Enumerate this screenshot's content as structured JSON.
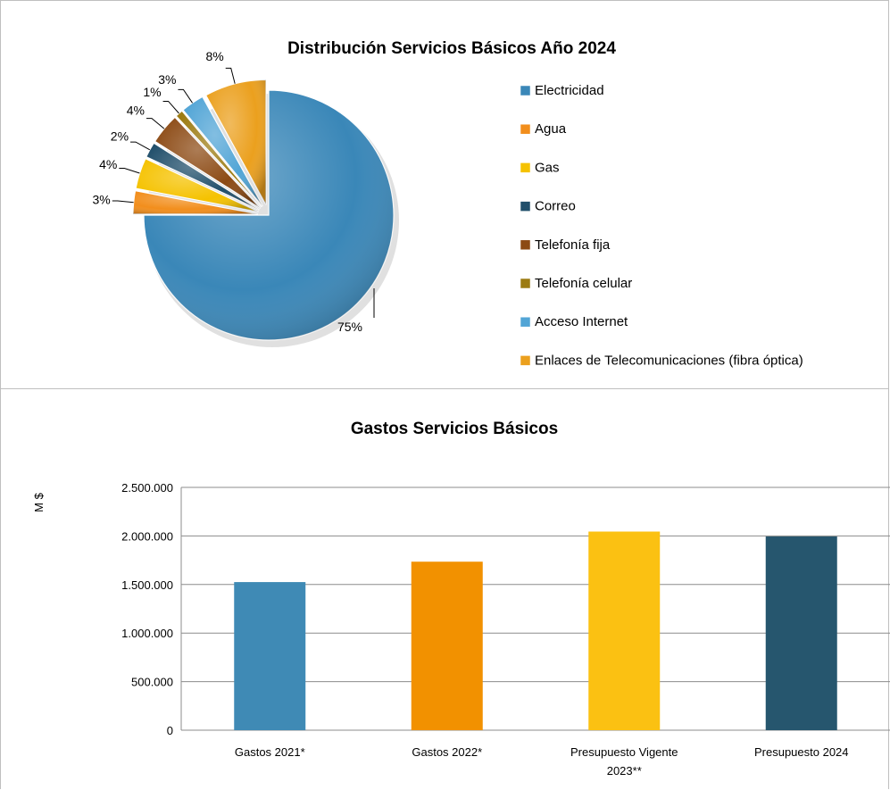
{
  "chart_data": [
    {
      "type": "pie",
      "title": "Distribución Servicios Básicos Año 2024",
      "legend_position": "right",
      "slices": [
        {
          "label": "Electricidad",
          "percent": 75,
          "color": "#3a87b8",
          "exploded": false
        },
        {
          "label": "Agua",
          "percent": 3,
          "color": "#f28e1c",
          "exploded": true
        },
        {
          "label": "Gas",
          "percent": 4,
          "color": "#f5c200",
          "exploded": true
        },
        {
          "label": "Correo",
          "percent": 2,
          "color": "#214f6b",
          "exploded": true
        },
        {
          "label": "Telefonía fija",
          "percent": 4,
          "color": "#8c4a14",
          "exploded": true
        },
        {
          "label": "Telefonía celular",
          "percent": 1,
          "color": "#9c7b12",
          "exploded": true
        },
        {
          "label": "Acceso Internet",
          "percent": 3,
          "color": "#52a5d6",
          "exploded": true
        },
        {
          "label": "Enlaces de Telecomunicaciones (fibra óptica)",
          "percent": 8,
          "color": "#eba01e",
          "exploded": true
        }
      ],
      "data_labels": [
        "75%",
        "3%",
        "4%",
        "2%",
        "4%",
        "1%",
        "3%",
        "8%"
      ]
    },
    {
      "type": "bar",
      "title": "Gastos Servicios Básicos",
      "xlabel": "",
      "ylabel": "M $",
      "ylim": [
        0,
        2500000
      ],
      "yticks": [
        0,
        500000,
        1000000,
        1500000,
        2000000,
        2500000
      ],
      "ytick_labels": [
        "0",
        "500.000",
        "1.000.000",
        "1.500.000",
        "2.000.000",
        "2.500.000"
      ],
      "grid": true,
      "categories": [
        [
          "Gastos 2021*"
        ],
        [
          "Gastos 2022*"
        ],
        [
          "Presupuesto Vigente",
          "2023**"
        ],
        [
          "Presupuesto 2024"
        ]
      ],
      "values": [
        1525000,
        1735000,
        2045000,
        1995000
      ],
      "colors": [
        "#3f8ab5",
        "#f29100",
        "#fbc112",
        "#26566e"
      ]
    }
  ]
}
